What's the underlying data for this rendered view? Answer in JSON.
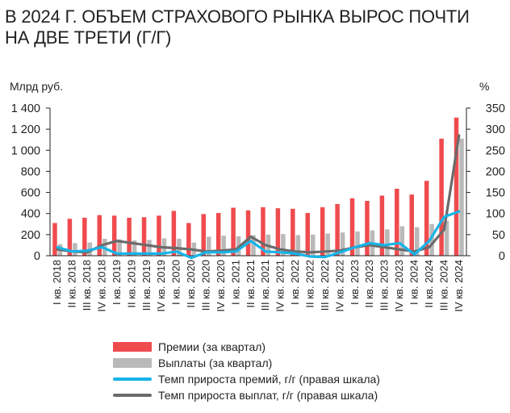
{
  "title": "В 2024 Г. ОБЪЕМ СТРАХОВОГО РЫНКА ВЫРОС ПОЧТИ НА ДВЕ ТРЕТИ (Г/Г)",
  "left_unit": "Млрд руб.",
  "right_unit": "%",
  "colors": {
    "premiums": "#ef4b4f",
    "payouts": "#b9b9b9",
    "premium_growth": "#16b4e8",
    "payout_growth": "#6b6b6b"
  },
  "chart_data": {
    "type": "bar",
    "categories": [
      "I кв. 2018",
      "II кв. 2018",
      "III кв. 2018",
      "IV кв. 2018",
      "I кв. 2019",
      "II кв. 2019",
      "III кв. 2019",
      "IV кв. 2019",
      "I кв. 2020",
      "II кв. 2020",
      "III кв. 2020",
      "IV кв. 2020",
      "I кв. 2021",
      "II кв. 2021",
      "III кв. 2021",
      "IV кв. 2021",
      "I кв. 2022",
      "II кв. 2022",
      "III кв. 2022",
      "IV кв. 2022",
      "I кв. 2023",
      "II кв. 2023",
      "III кв. 2023",
      "IV кв. 2023",
      "I кв. 2024",
      "II кв. 2024",
      "III кв. 2024",
      "IV кв. 2024"
    ],
    "left_axis": {
      "ylim": [
        0,
        1400
      ],
      "ticks": [
        "0",
        "200",
        "400",
        "600",
        "800",
        "1 000",
        "1 200",
        "1 400"
      ]
    },
    "right_axis": {
      "ylim": [
        0,
        350
      ],
      "ticks": [
        "0",
        "50",
        "100",
        "150",
        "200",
        "250",
        "300",
        "350"
      ]
    },
    "grid": false,
    "series": [
      {
        "name": "Премии (за квартал)",
        "type": "bar",
        "axis": "left",
        "values": [
          310,
          350,
          360,
          385,
          380,
          360,
          365,
          380,
          425,
          310,
          395,
          405,
          455,
          430,
          460,
          450,
          445,
          405,
          460,
          490,
          545,
          520,
          570,
          635,
          580,
          710,
          1110,
          1310
        ]
      },
      {
        "name": "Выплаты (за квартал)",
        "type": "bar",
        "axis": "left",
        "values": [
          110,
          120,
          125,
          160,
          155,
          145,
          150,
          165,
          160,
          125,
          180,
          190,
          185,
          195,
          200,
          205,
          195,
          200,
          210,
          220,
          230,
          240,
          250,
          280,
          270,
          300,
          330,
          1110
        ]
      },
      {
        "name": "Темп прироста премий, г/г (правая шкала)",
        "type": "line",
        "axis": "right",
        "values": [
          20,
          10,
          12,
          20,
          5,
          5,
          5,
          5,
          10,
          -5,
          8,
          8,
          10,
          35,
          10,
          8,
          5,
          -2,
          -3,
          8,
          20,
          30,
          25,
          30,
          3,
          35,
          92,
          105
        ]
      },
      {
        "name": "Темп прироста выплат, г/г (правая шкала)",
        "type": "line",
        "axis": "right",
        "values": [
          15,
          10,
          8,
          25,
          35,
          30,
          25,
          20,
          18,
          15,
          10,
          12,
          15,
          45,
          25,
          15,
          10,
          8,
          10,
          12,
          20,
          25,
          20,
          15,
          10,
          20,
          62,
          285
        ]
      }
    ]
  }
}
